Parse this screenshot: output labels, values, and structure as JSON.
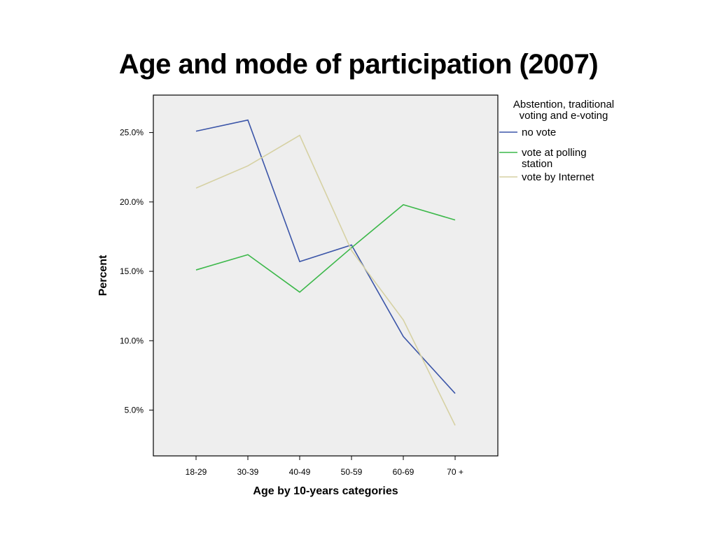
{
  "chart_data": {
    "type": "line",
    "title": "Age and mode of participation (2007)",
    "xlabel": "Age by 10-years categories",
    "ylabel": "Percent",
    "categories": [
      "18-29",
      "30-39",
      "40-49",
      "50-59",
      "60-69",
      "70 +"
    ],
    "ylim": [
      1.7,
      27.7
    ],
    "yticks": [
      5,
      10,
      15,
      20,
      25
    ],
    "ytick_labels": [
      "5.0%",
      "10.0%",
      "15.0%",
      "20.0%",
      "25.0%"
    ],
    "grid": false,
    "legend": {
      "title": [
        "Abstention, traditional",
        "voting and e-voting"
      ],
      "placement": "right"
    },
    "series": [
      {
        "name": "no vote",
        "name_lines": [
          "no vote"
        ],
        "color": "#3b55a8",
        "values": [
          25.1,
          25.9,
          15.7,
          16.9,
          10.3,
          6.2
        ]
      },
      {
        "name": "vote at polling station",
        "name_lines": [
          "vote at polling",
          "station"
        ],
        "color": "#3cb84a",
        "values": [
          15.1,
          16.2,
          13.5,
          16.7,
          19.8,
          18.7
        ]
      },
      {
        "name": "vote by Internet",
        "name_lines": [
          "vote by Internet"
        ],
        "color": "#d6d1a3",
        "values": [
          21.0,
          22.6,
          24.8,
          16.5,
          11.5,
          3.9
        ]
      }
    ]
  }
}
